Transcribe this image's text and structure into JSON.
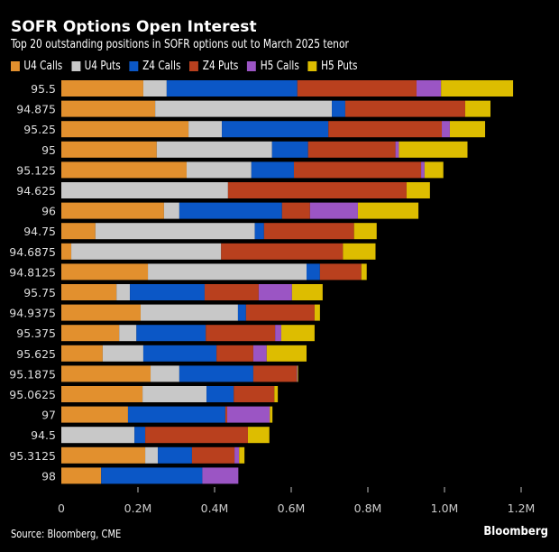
{
  "header": {
    "title": "SOFR Options Open Interest",
    "subtitle": "Top 20 outstanding positions in SOFR options out to March 2025 tenor"
  },
  "footer": {
    "source": "Source: Bloomberg, CME",
    "brand": "Bloomberg"
  },
  "chart_data": {
    "type": "bar",
    "orientation": "horizontal",
    "stacked": true,
    "title": "SOFR Options Open Interest",
    "subtitle": "Top 20 outstanding positions in SOFR options out to March 2025 tenor",
    "xlabel": "",
    "ylabel": "",
    "xlim": [
      0,
      1200000
    ],
    "xticks": [
      0,
      200000,
      400000,
      600000,
      800000,
      1000000,
      1200000
    ],
    "xtick_labels": [
      "0",
      "0.2M",
      "0.4M",
      "0.6M",
      "0.8M",
      "1.0M",
      "1.2M"
    ],
    "grid": false,
    "legend_position": "top-left",
    "categories": [
      "95.5",
      "94.875",
      "95.25",
      "95",
      "95.125",
      "94.625",
      "96",
      "94.75",
      "94.6875",
      "94.8125",
      "95.75",
      "94.9375",
      "95.375",
      "95.625",
      "95.1875",
      "95.0625",
      "97",
      "94.5",
      "95.3125",
      "98"
    ],
    "series": [
      {
        "name": "U4 Calls",
        "color": "#E2902E",
        "values": [
          214000,
          245000,
          332000,
          249000,
          327000,
          0,
          268000,
          89000,
          26000,
          226000,
          144000,
          207000,
          151000,
          108000,
          233000,
          212000,
          174000,
          0,
          219000,
          104000
        ]
      },
      {
        "name": "U4 Puts",
        "color": "#C8C8C8",
        "values": [
          61000,
          461000,
          87000,
          301000,
          169000,
          435000,
          40000,
          416000,
          391000,
          414000,
          35000,
          254000,
          45000,
          106000,
          75000,
          167000,
          0,
          191000,
          33000,
          0
        ]
      },
      {
        "name": "Z4 Calls",
        "color": "#0B57C6",
        "values": [
          341000,
          35000,
          278000,
          94000,
          111000,
          0,
          268000,
          24000,
          0,
          35000,
          195000,
          21000,
          181000,
          191000,
          193000,
          71000,
          254000,
          28000,
          89000,
          264000
        ]
      },
      {
        "name": "Z4 Puts",
        "color": "#B9401E",
        "values": [
          311000,
          313000,
          296000,
          228000,
          332000,
          466000,
          73000,
          235000,
          318000,
          108000,
          141000,
          179000,
          181000,
          96000,
          113000,
          106000,
          5000,
          268000,
          111000,
          0
        ]
      },
      {
        "name": "H5 Calls",
        "color": "#9B55C4",
        "values": [
          64000,
          0,
          21000,
          9000,
          9000,
          0,
          125000,
          0,
          0,
          0,
          87000,
          0,
          16000,
          35000,
          2000,
          0,
          111000,
          0,
          12000,
          94000
        ]
      },
      {
        "name": "H5 Puts",
        "color": "#DDBD00",
        "values": [
          188000,
          66000,
          92000,
          179000,
          49000,
          61000,
          158000,
          59000,
          85000,
          14000,
          80000,
          14000,
          87000,
          104000,
          2000,
          9000,
          7000,
          56000,
          14000,
          0
        ]
      }
    ]
  }
}
